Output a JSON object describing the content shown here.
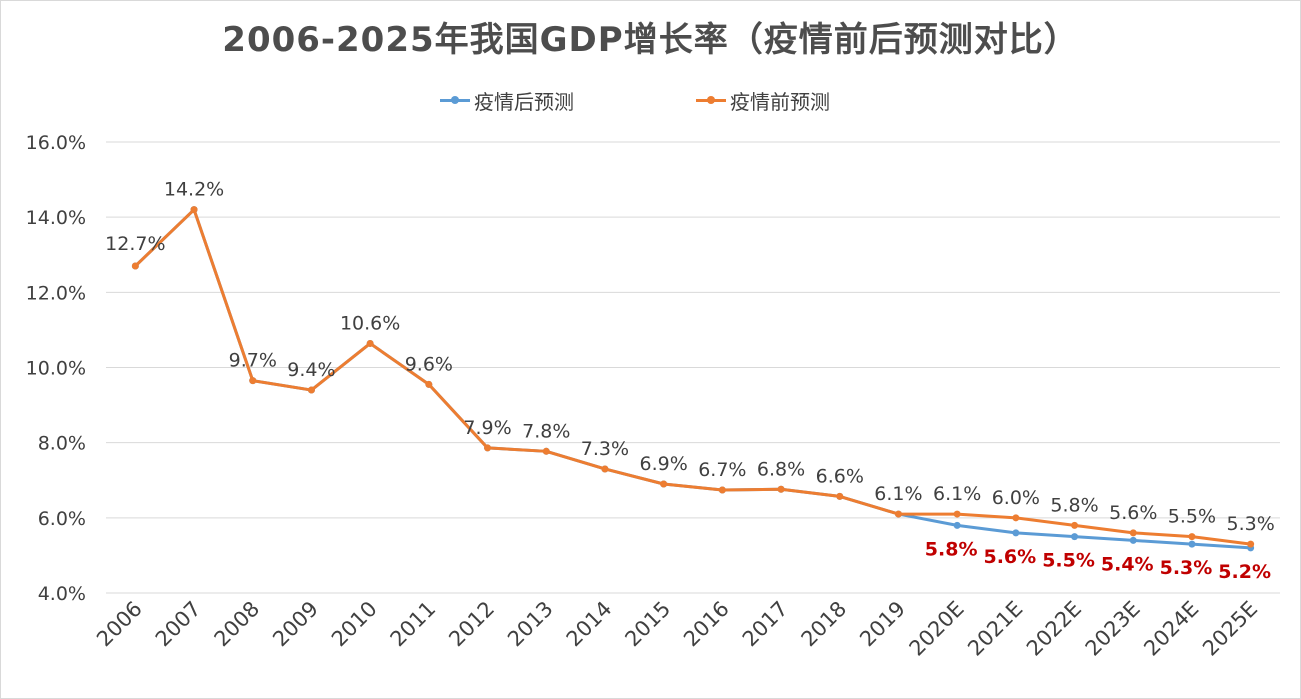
{
  "chart_data": {
    "type": "line",
    "title": "2006-2025年我国GDP增长率（疫情前后预测对比）",
    "categories": [
      "2006",
      "2007",
      "2008",
      "2009",
      "2010",
      "2011",
      "2012",
      "2013",
      "2014",
      "2015",
      "2016",
      "2017",
      "2018",
      "2019",
      "2020E",
      "2021E",
      "2022E",
      "2023E",
      "2024E",
      "2025E"
    ],
    "ylim": [
      4.0,
      16.0
    ],
    "yticks": [
      "4.0%",
      "6.0%",
      "8.0%",
      "10.0%",
      "12.0%",
      "14.0%",
      "16.0%"
    ],
    "grid": true,
    "legend_position": "top",
    "series": [
      {
        "name": "疫情后预测",
        "color": "#5b9bd5",
        "values": [
          12.7,
          14.2,
          9.65,
          9.4,
          10.64,
          9.55,
          7.86,
          7.77,
          7.3,
          6.9,
          6.74,
          6.76,
          6.57,
          6.1,
          5.8,
          5.6,
          5.5,
          5.4,
          5.3,
          5.2
        ],
        "data_labels": [
          "",
          "",
          "",
          "",
          "",
          "",
          "",
          "",
          "",
          "",
          "",
          "",
          "",
          "",
          "5.8%",
          "5.6%",
          "5.5%",
          "5.4%",
          "5.3%",
          "5.2%"
        ]
      },
      {
        "name": "疫情前预测",
        "color": "#ed7d31",
        "values": [
          12.7,
          14.2,
          9.65,
          9.4,
          10.64,
          9.55,
          7.86,
          7.77,
          7.3,
          6.9,
          6.74,
          6.76,
          6.57,
          6.1,
          6.1,
          6.0,
          5.8,
          5.6,
          5.5,
          5.3
        ],
        "data_labels": [
          "12.7%",
          "14.2%",
          "9.7%",
          "9.4%",
          "10.6%",
          "9.6%",
          "7.9%",
          "7.8%",
          "7.3%",
          "6.9%",
          "6.7%",
          "6.8%",
          "6.6%",
          "6.1%",
          "6.1%",
          "6.0%",
          "5.8%",
          "5.6%",
          "5.5%",
          "5.3%"
        ]
      }
    ]
  }
}
